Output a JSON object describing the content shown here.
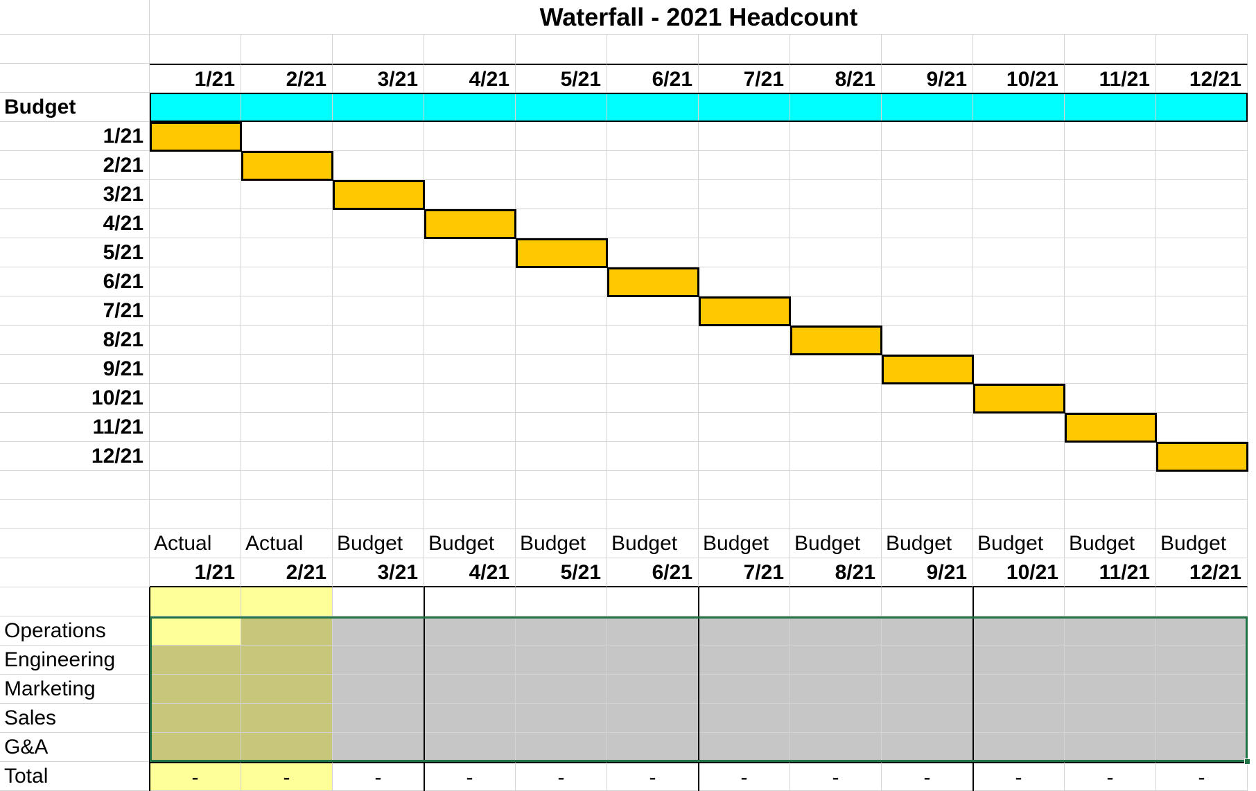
{
  "title": "Waterfall - 2021 Headcount",
  "months": [
    "1/21",
    "2/21",
    "3/21",
    "4/21",
    "5/21",
    "6/21",
    "7/21",
    "8/21",
    "9/21",
    "10/21",
    "11/21",
    "12/21"
  ],
  "budget_label": "Budget",
  "waterfall_rows": [
    "1/21",
    "2/21",
    "3/21",
    "4/21",
    "5/21",
    "6/21",
    "7/21",
    "8/21",
    "9/21",
    "10/21",
    "11/21",
    "12/21"
  ],
  "type_labels": [
    "Actual",
    "Actual",
    "Budget",
    "Budget",
    "Budget",
    "Budget",
    "Budget",
    "Budget",
    "Budget",
    "Budget",
    "Budget",
    "Budget"
  ],
  "departments": [
    "Operations",
    "Engineering",
    "Marketing",
    "Sales",
    "G&A"
  ],
  "total_label": "Total",
  "total_values": [
    "-",
    "-",
    "-",
    "-",
    "-",
    "-",
    "-",
    "-",
    "-",
    "-",
    "-",
    "-"
  ],
  "colors": {
    "budget_band": "#00ffff",
    "waterfall_block": "#ffc800",
    "actual_highlight": "#ffff99",
    "actual_fill": "#c8c67a",
    "budget_fill": "#c6c6c6",
    "selection_border": "#217346"
  }
}
